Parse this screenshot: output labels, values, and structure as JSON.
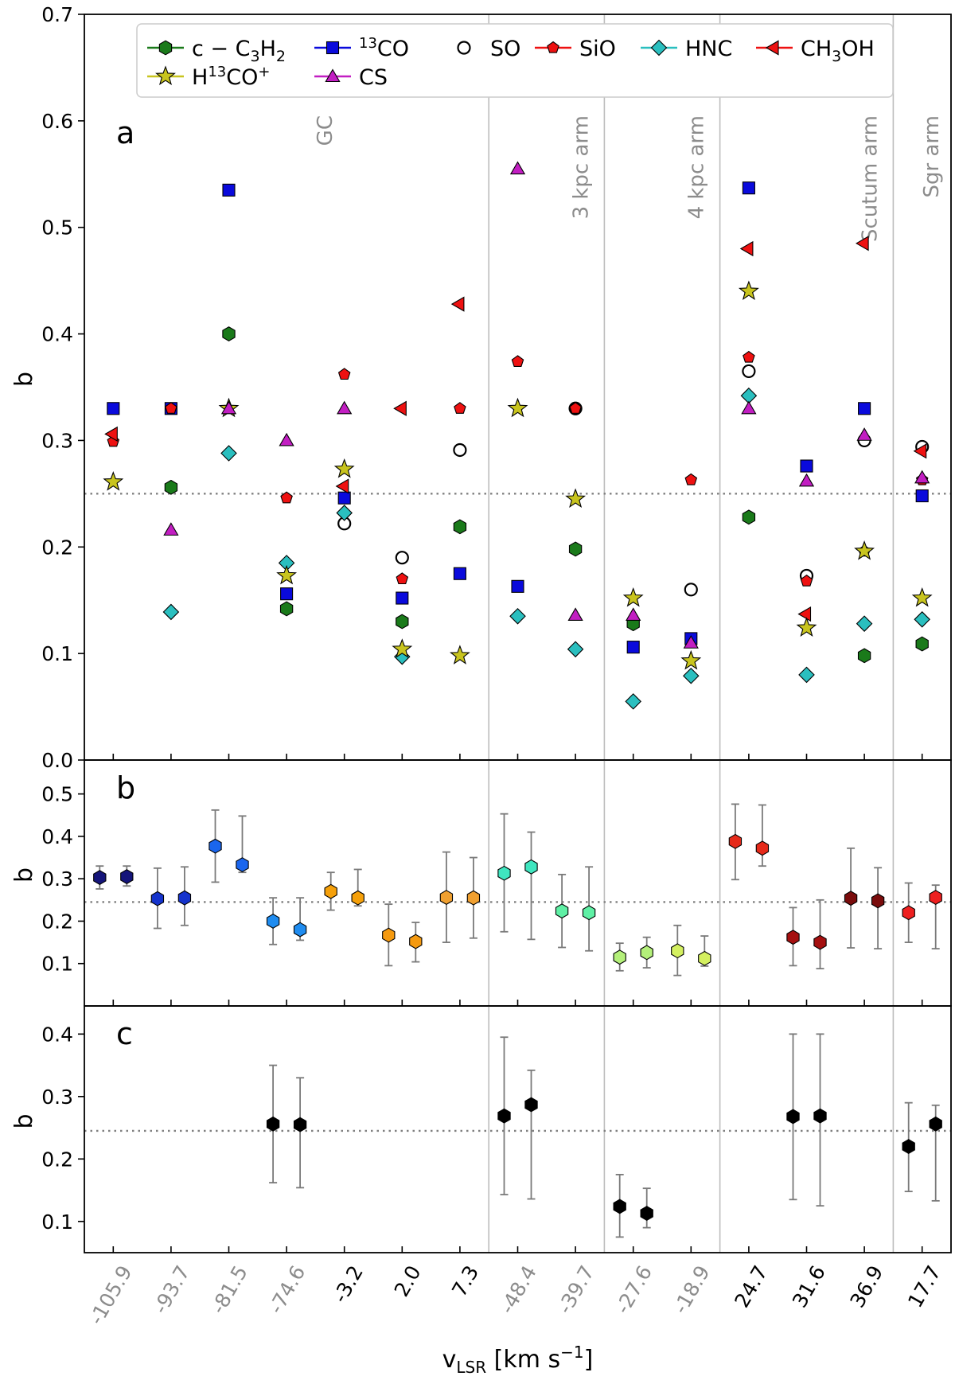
{
  "chart_data": [
    {
      "type": "scatter",
      "panel_label": "a",
      "ylabel": "b",
      "ylim": [
        0.0,
        0.7
      ],
      "yticks": [
        "0.0",
        "0.1",
        "0.2",
        "0.3",
        "0.4",
        "0.5",
        "0.6",
        "0.7"
      ],
      "reference_line": 0.25,
      "regions": [
        {
          "label": "GC",
          "from": 0,
          "to": 6
        },
        {
          "label": "3 kpc arm",
          "from": 7,
          "to": 8
        },
        {
          "label": "4 kpc arm",
          "from": 9,
          "to": 10
        },
        {
          "label": "Scutum arm",
          "from": 11,
          "to": 13
        },
        {
          "label": "Sgr arm",
          "from": 14,
          "to": 14
        }
      ],
      "legend": {
        "position": "top",
        "entries": [
          {
            "key": "c3h2",
            "label_base": "c − C",
            "label_sub": "3",
            "label_after": "H",
            "label_sub2": "2"
          },
          {
            "key": "co13",
            "label_pre_sup": "13",
            "label_base": "CO"
          },
          {
            "key": "so",
            "label_base": "SO"
          },
          {
            "key": "sio",
            "label_base": "SiO"
          },
          {
            "key": "hnc",
            "label_base": "HNC"
          },
          {
            "key": "ch3oh",
            "label_base": "CH",
            "label_sub": "3",
            "label_after": "OH"
          },
          {
            "key": "h13co",
            "label_base": "H",
            "label_sup": "13",
            "label_after": "CO",
            "label_sup2": "+"
          },
          {
            "key": "cs",
            "label_base": "CS"
          }
        ]
      },
      "series": [
        {
          "key": "c3h2",
          "marker": "hexagon",
          "color": "#1a7a1a",
          "values": [
            null,
            0.256,
            0.4,
            0.142,
            null,
            0.13,
            0.219,
            null,
            0.198,
            0.128,
            null,
            0.228,
            null,
            0.098,
            0.109
          ]
        },
        {
          "key": "co13",
          "marker": "square",
          "color": "#0a0adc",
          "values": [
            0.33,
            0.33,
            0.535,
            0.156,
            0.246,
            0.152,
            0.175,
            0.163,
            null,
            0.106,
            0.114,
            0.537,
            0.276,
            0.33,
            0.248
          ]
        },
        {
          "key": "so",
          "marker": "circle",
          "color": "#000000",
          "values": [
            null,
            null,
            null,
            null,
            0.222,
            0.19,
            0.291,
            null,
            0.33,
            null,
            0.16,
            0.365,
            0.173,
            0.3,
            0.294
          ]
        },
        {
          "key": "sio",
          "marker": "pentagon",
          "color": "#ee1111",
          "values": [
            0.299,
            0.33,
            null,
            0.246,
            0.362,
            0.17,
            0.33,
            0.374,
            0.33,
            null,
            0.263,
            0.378,
            0.168,
            0.196,
            0.263
          ]
        },
        {
          "key": "hnc",
          "marker": "diamond",
          "color": "#2abfbf",
          "values": [
            null,
            0.139,
            0.288,
            0.185,
            0.232,
            0.097,
            null,
            0.135,
            0.104,
            0.055,
            0.079,
            0.342,
            0.08,
            0.128,
            0.132
          ]
        },
        {
          "key": "ch3oh",
          "marker": "triangle-left",
          "color": "#ee1111",
          "values": [
            0.306,
            null,
            null,
            null,
            0.257,
            0.33,
            0.428,
            null,
            null,
            null,
            null,
            0.48,
            0.137,
            0.485,
            0.29
          ]
        },
        {
          "key": "h13co",
          "marker": "star",
          "color": "#c8c41e",
          "values": [
            0.261,
            null,
            0.33,
            0.173,
            0.273,
            0.104,
            0.098,
            0.33,
            0.245,
            0.152,
            0.093,
            0.44,
            0.124,
            0.196,
            0.152
          ]
        },
        {
          "key": "cs",
          "marker": "triangle-up",
          "color": "#c21ec2",
          "values": [
            null,
            0.216,
            0.33,
            0.3,
            0.33,
            null,
            null,
            0.555,
            0.136,
            0.136,
            0.11,
            0.33,
            0.262,
            0.305,
            0.265
          ]
        }
      ]
    },
    {
      "type": "scatter",
      "panel_label": "b",
      "ylabel": "b",
      "ylim": [
        0.0,
        0.58
      ],
      "yticks": [
        "0.1",
        "0.2",
        "0.3",
        "0.4",
        "0.5"
      ],
      "reference_line": 0.245,
      "pairs": [
        {
          "color": "#15157a",
          "points": [
            {
              "y": 0.303,
              "lo": 0.276,
              "hi": 0.33
            },
            {
              "y": 0.305,
              "lo": 0.283,
              "hi": 0.33
            }
          ]
        },
        {
          "color": "#1533cc",
          "points": [
            {
              "y": 0.253,
              "lo": 0.183,
              "hi": 0.325
            },
            {
              "y": 0.255,
              "lo": 0.19,
              "hi": 0.328
            }
          ]
        },
        {
          "color": "#1a66ee",
          "points": [
            {
              "y": 0.377,
              "lo": 0.292,
              "hi": 0.462
            },
            {
              "y": 0.333,
              "lo": 0.315,
              "hi": 0.448
            }
          ]
        },
        {
          "color": "#1f8cf0",
          "points": [
            {
              "y": 0.2,
              "lo": 0.145,
              "hi": 0.255
            },
            {
              "y": 0.18,
              "lo": 0.155,
              "hi": 0.255
            }
          ]
        },
        {
          "color": "#f5a00a",
          "points": [
            {
              "y": 0.27,
              "lo": 0.226,
              "hi": 0.315
            },
            {
              "y": 0.255,
              "lo": 0.236,
              "hi": 0.322
            }
          ]
        },
        {
          "color": "#f59a10",
          "points": [
            {
              "y": 0.167,
              "lo": 0.095,
              "hi": 0.24
            },
            {
              "y": 0.152,
              "lo": 0.104,
              "hi": 0.197
            }
          ]
        },
        {
          "color": "#f0a030",
          "points": [
            {
              "y": 0.256,
              "lo": 0.15,
              "hi": 0.363
            },
            {
              "y": 0.255,
              "lo": 0.16,
              "hi": 0.35
            }
          ]
        },
        {
          "color": "#3fe6c0",
          "points": [
            {
              "y": 0.313,
              "lo": 0.175,
              "hi": 0.453
            },
            {
              "y": 0.328,
              "lo": 0.157,
              "hi": 0.41
            }
          ]
        },
        {
          "color": "#5ff0a5",
          "points": [
            {
              "y": 0.224,
              "lo": 0.138,
              "hi": 0.31
            },
            {
              "y": 0.22,
              "lo": 0.13,
              "hi": 0.328
            }
          ]
        },
        {
          "color": "#b4f07a",
          "points": [
            {
              "y": 0.115,
              "lo": 0.083,
              "hi": 0.148
            },
            {
              "y": 0.126,
              "lo": 0.09,
              "hi": 0.162
            }
          ]
        },
        {
          "color": "#d4f060",
          "points": [
            {
              "y": 0.13,
              "lo": 0.072,
              "hi": 0.19
            },
            {
              "y": 0.112,
              "lo": 0.094,
              "hi": 0.165
            }
          ]
        },
        {
          "color": "#e62a1a",
          "points": [
            {
              "y": 0.388,
              "lo": 0.298,
              "hi": 0.476
            },
            {
              "y": 0.372,
              "lo": 0.33,
              "hi": 0.474
            }
          ]
        },
        {
          "color": "#a51010",
          "points": [
            {
              "y": 0.162,
              "lo": 0.095,
              "hi": 0.232
            },
            {
              "y": 0.15,
              "lo": 0.088,
              "hi": 0.25
            }
          ]
        },
        {
          "color": "#7a0c0c",
          "points": [
            {
              "y": 0.254,
              "lo": 0.137,
              "hi": 0.372
            },
            {
              "y": 0.248,
              "lo": 0.135,
              "hi": 0.326
            }
          ]
        },
        {
          "color": "#ee2020",
          "points": [
            {
              "y": 0.22,
              "lo": 0.15,
              "hi": 0.29
            },
            {
              "y": 0.256,
              "lo": 0.135,
              "hi": 0.285
            }
          ]
        }
      ]
    },
    {
      "type": "scatter",
      "panel_label": "c",
      "ylabel": "b",
      "ylim": [
        0.05,
        0.445
      ],
      "yticks": [
        "0.1",
        "0.2",
        "0.3",
        "0.4"
      ],
      "reference_line": 0.245,
      "color": "#000000",
      "pairs": [
        {
          "category": 3,
          "points": [
            {
              "y": 0.256,
              "lo": 0.162,
              "hi": 0.35
            },
            {
              "y": 0.255,
              "lo": 0.154,
              "hi": 0.33
            }
          ]
        },
        {
          "category": 7,
          "points": [
            {
              "y": 0.269,
              "lo": 0.143,
              "hi": 0.395
            },
            {
              "y": 0.287,
              "lo": 0.136,
              "hi": 0.342
            }
          ]
        },
        {
          "category": 9,
          "points": [
            {
              "y": 0.124,
              "lo": 0.075,
              "hi": 0.175
            },
            {
              "y": 0.113,
              "lo": 0.09,
              "hi": 0.153
            }
          ]
        },
        {
          "category": 12,
          "points": [
            {
              "y": 0.268,
              "lo": 0.135,
              "hi": 0.4
            },
            {
              "y": 0.269,
              "lo": 0.125,
              "hi": 0.4
            }
          ]
        },
        {
          "category": 14,
          "points": [
            {
              "y": 0.22,
              "lo": 0.148,
              "hi": 0.29
            },
            {
              "y": 0.256,
              "lo": 0.133,
              "hi": 0.286
            }
          ]
        }
      ]
    }
  ],
  "x_axis": {
    "categories": [
      "-105.9",
      "-93.7",
      "-81.5",
      "-74.6",
      "-3.2",
      "2.0",
      "7.3",
      "-48.4",
      "-39.7",
      "-27.6",
      "-18.9",
      "24.7",
      "31.6",
      "36.9",
      "17.7"
    ],
    "category_colors": [
      "#8c8c8c",
      "#8c8c8c",
      "#8c8c8c",
      "#8c8c8c",
      "#000000",
      "#000000",
      "#000000",
      "#8c8c8c",
      "#8c8c8c",
      "#8c8c8c",
      "#8c8c8c",
      "#000000",
      "#000000",
      "#000000",
      "#000000"
    ],
    "label_base": "v",
    "label_sub": "LSR",
    "label_unit": "[km s",
    "label_unit_sup": "−1",
    "label_end": "]"
  }
}
